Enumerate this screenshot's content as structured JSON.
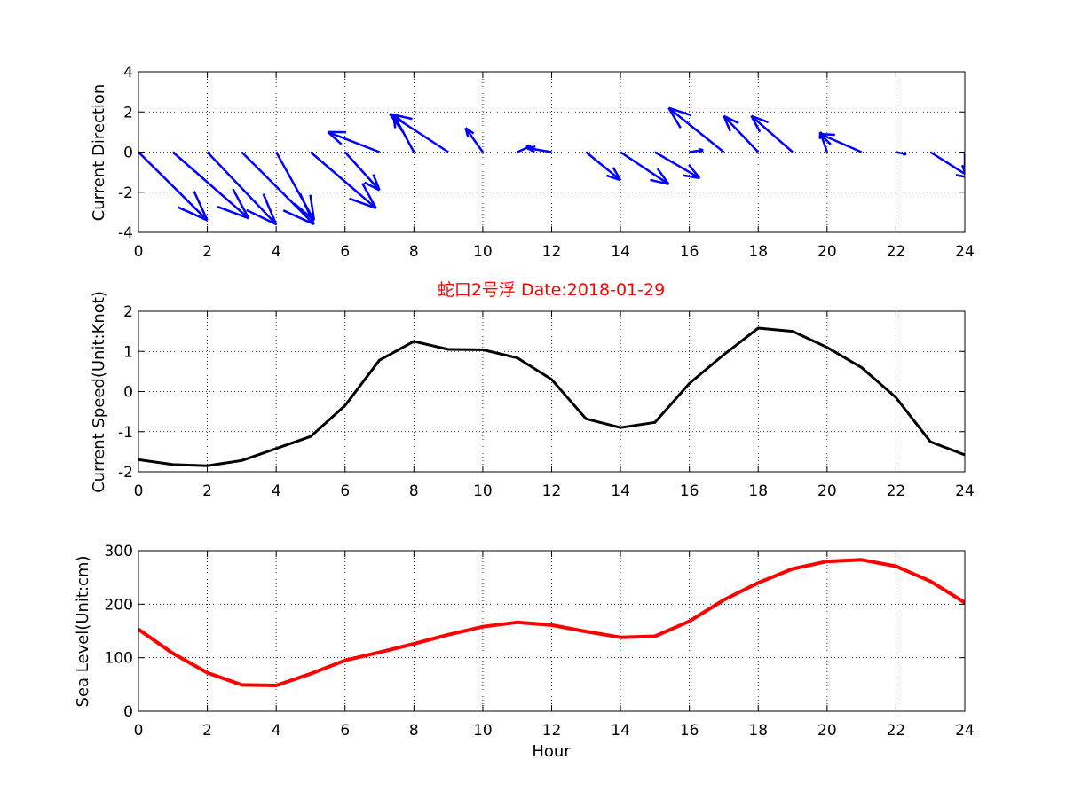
{
  "colors": {
    "quiver": "#0000ff",
    "speed": "#000000",
    "sea_level": "#ff0000",
    "title": "#ff0000"
  },
  "chart_data": [
    {
      "type": "quiver",
      "ylabel": "Current Direction",
      "xlim": [
        0,
        24
      ],
      "ylim": [
        -4,
        4
      ],
      "xticks": [
        0,
        2,
        4,
        6,
        8,
        10,
        12,
        14,
        16,
        18,
        20,
        22,
        24
      ],
      "yticks": [
        -4,
        -2,
        0,
        2,
        4
      ],
      "grid": true,
      "vectors": [
        {
          "x": 0,
          "u": 2.0,
          "v": -3.4
        },
        {
          "x": 1,
          "u": 2.2,
          "v": -3.3
        },
        {
          "x": 2,
          "u": 2.0,
          "v": -3.6
        },
        {
          "x": 3,
          "u": 2.1,
          "v": -3.6
        },
        {
          "x": 4,
          "u": 1.1,
          "v": -3.4
        },
        {
          "x": 5,
          "u": 1.9,
          "v": -2.8
        },
        {
          "x": 6,
          "u": 1.0,
          "v": -1.9
        },
        {
          "x": 7,
          "u": -1.5,
          "v": 1.0
        },
        {
          "x": 8,
          "u": -0.6,
          "v": 1.9
        },
        {
          "x": 9,
          "u": -1.7,
          "v": 1.9
        },
        {
          "x": 10,
          "u": -0.5,
          "v": 1.2
        },
        {
          "x": 11,
          "u": 0.4,
          "v": 0.3
        },
        {
          "x": 12,
          "u": -0.7,
          "v": 0.2
        },
        {
          "x": 13,
          "u": 1.0,
          "v": -1.4
        },
        {
          "x": 14,
          "u": 1.4,
          "v": -1.6
        },
        {
          "x": 15,
          "u": 1.3,
          "v": -1.3
        },
        {
          "x": 16,
          "u": 0.4,
          "v": 0.1
        },
        {
          "x": 17,
          "u": -1.6,
          "v": 2.2
        },
        {
          "x": 18,
          "u": -1.0,
          "v": 1.8
        },
        {
          "x": 19,
          "u": -1.2,
          "v": 1.8
        },
        {
          "x": 20,
          "u": -0.2,
          "v": 1.0
        },
        {
          "x": 21,
          "u": -1.2,
          "v": 0.9
        },
        {
          "x": 22,
          "u": 0.3,
          "v": -0.1
        },
        {
          "x": 23,
          "u": 1.2,
          "v": -1.3
        },
        {
          "x": 24,
          "u": 0.0,
          "v": -1.0
        }
      ]
    },
    {
      "type": "line",
      "title": "蛇口2号浮   Date:2018-01-29",
      "ylabel": "Current Speed(Unit:Knot)",
      "xlim": [
        0,
        24
      ],
      "ylim": [
        -2,
        2
      ],
      "xticks": [
        0,
        2,
        4,
        6,
        8,
        10,
        12,
        14,
        16,
        18,
        20,
        22,
        24
      ],
      "yticks": [
        -2,
        -1,
        0,
        1,
        2
      ],
      "grid": true,
      "x": [
        0,
        1,
        2,
        3,
        4,
        5,
        6,
        7,
        8,
        9,
        10,
        11,
        12,
        13,
        14,
        15,
        16,
        17,
        18,
        19,
        20,
        21,
        22,
        23,
        24
      ],
      "y": [
        -1.7,
        -1.82,
        -1.85,
        -1.72,
        -1.42,
        -1.12,
        -0.35,
        0.78,
        1.25,
        1.05,
        1.04,
        0.84,
        0.3,
        -0.68,
        -0.9,
        -0.77,
        0.2,
        0.92,
        1.58,
        1.5,
        1.1,
        0.6,
        -0.15,
        -1.25,
        -1.58
      ]
    },
    {
      "type": "line",
      "xlabel": "Hour",
      "ylabel": "Sea Level(Unit:cm)",
      "xlim": [
        0,
        24
      ],
      "ylim": [
        0,
        300
      ],
      "xticks": [
        0,
        2,
        4,
        6,
        8,
        10,
        12,
        14,
        16,
        18,
        20,
        22,
        24
      ],
      "yticks": [
        0,
        100,
        200,
        300
      ],
      "grid": true,
      "x": [
        0,
        1,
        2,
        3,
        4,
        5,
        6,
        7,
        8,
        9,
        10,
        11,
        12,
        13,
        14,
        15,
        16,
        17,
        18,
        19,
        20,
        21,
        22,
        23,
        24
      ],
      "y": [
        153,
        108,
        72,
        49,
        48,
        70,
        95,
        110,
        126,
        143,
        158,
        166,
        161,
        149,
        138,
        140,
        168,
        208,
        240,
        266,
        280,
        283,
        271,
        243,
        203
      ]
    }
  ]
}
